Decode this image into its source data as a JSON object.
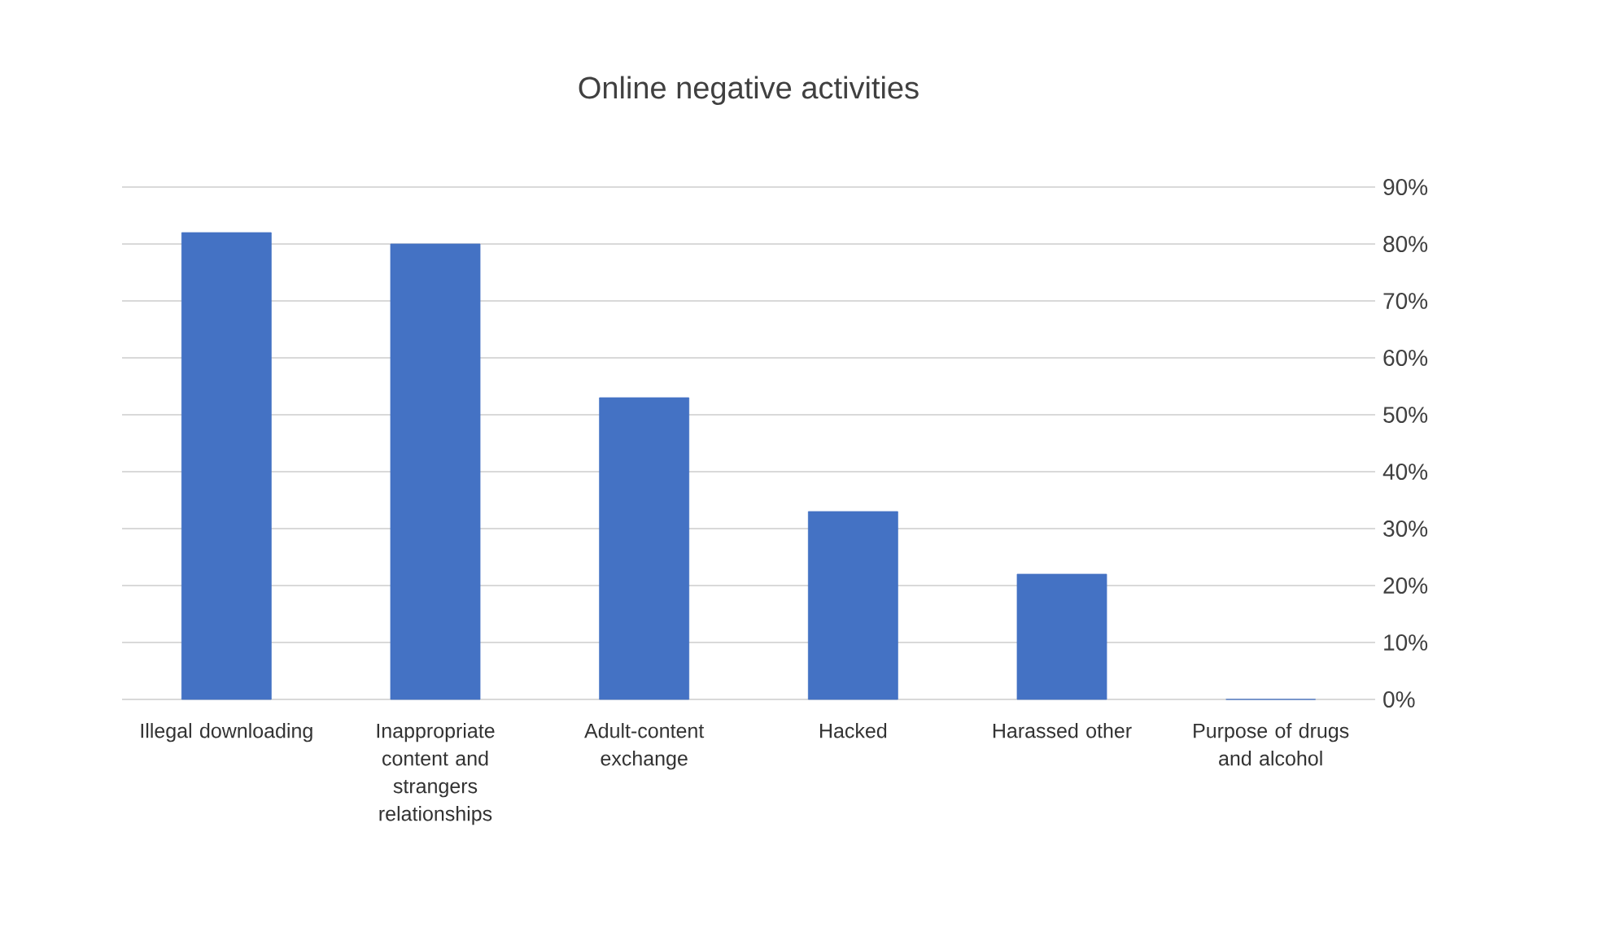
{
  "chart_data": {
    "type": "bar",
    "title": "Online negative activities",
    "categories": [
      "Illegal downloading",
      "Inappropriate content and strangers relationships",
      "Adult-content exchange",
      "Hacked",
      "Harassed other",
      "Purpose of drugs and alcohol"
    ],
    "values": [
      82,
      80,
      53,
      33,
      22,
      0
    ],
    "color": "#4472c4",
    "ylim": [
      0,
      90
    ],
    "yticks": [
      {
        "value": 0,
        "label": "0%"
      },
      {
        "value": 10,
        "label": "10%"
      },
      {
        "value": 20,
        "label": "20%"
      },
      {
        "value": 30,
        "label": "30%"
      },
      {
        "value": 40,
        "label": "40%"
      },
      {
        "value": 50,
        "label": "50%"
      },
      {
        "value": 60,
        "label": "60%"
      },
      {
        "value": 70,
        "label": "70%"
      },
      {
        "value": 80,
        "label": "80%"
      },
      {
        "value": 90,
        "label": "90%"
      }
    ],
    "grid": "y"
  }
}
